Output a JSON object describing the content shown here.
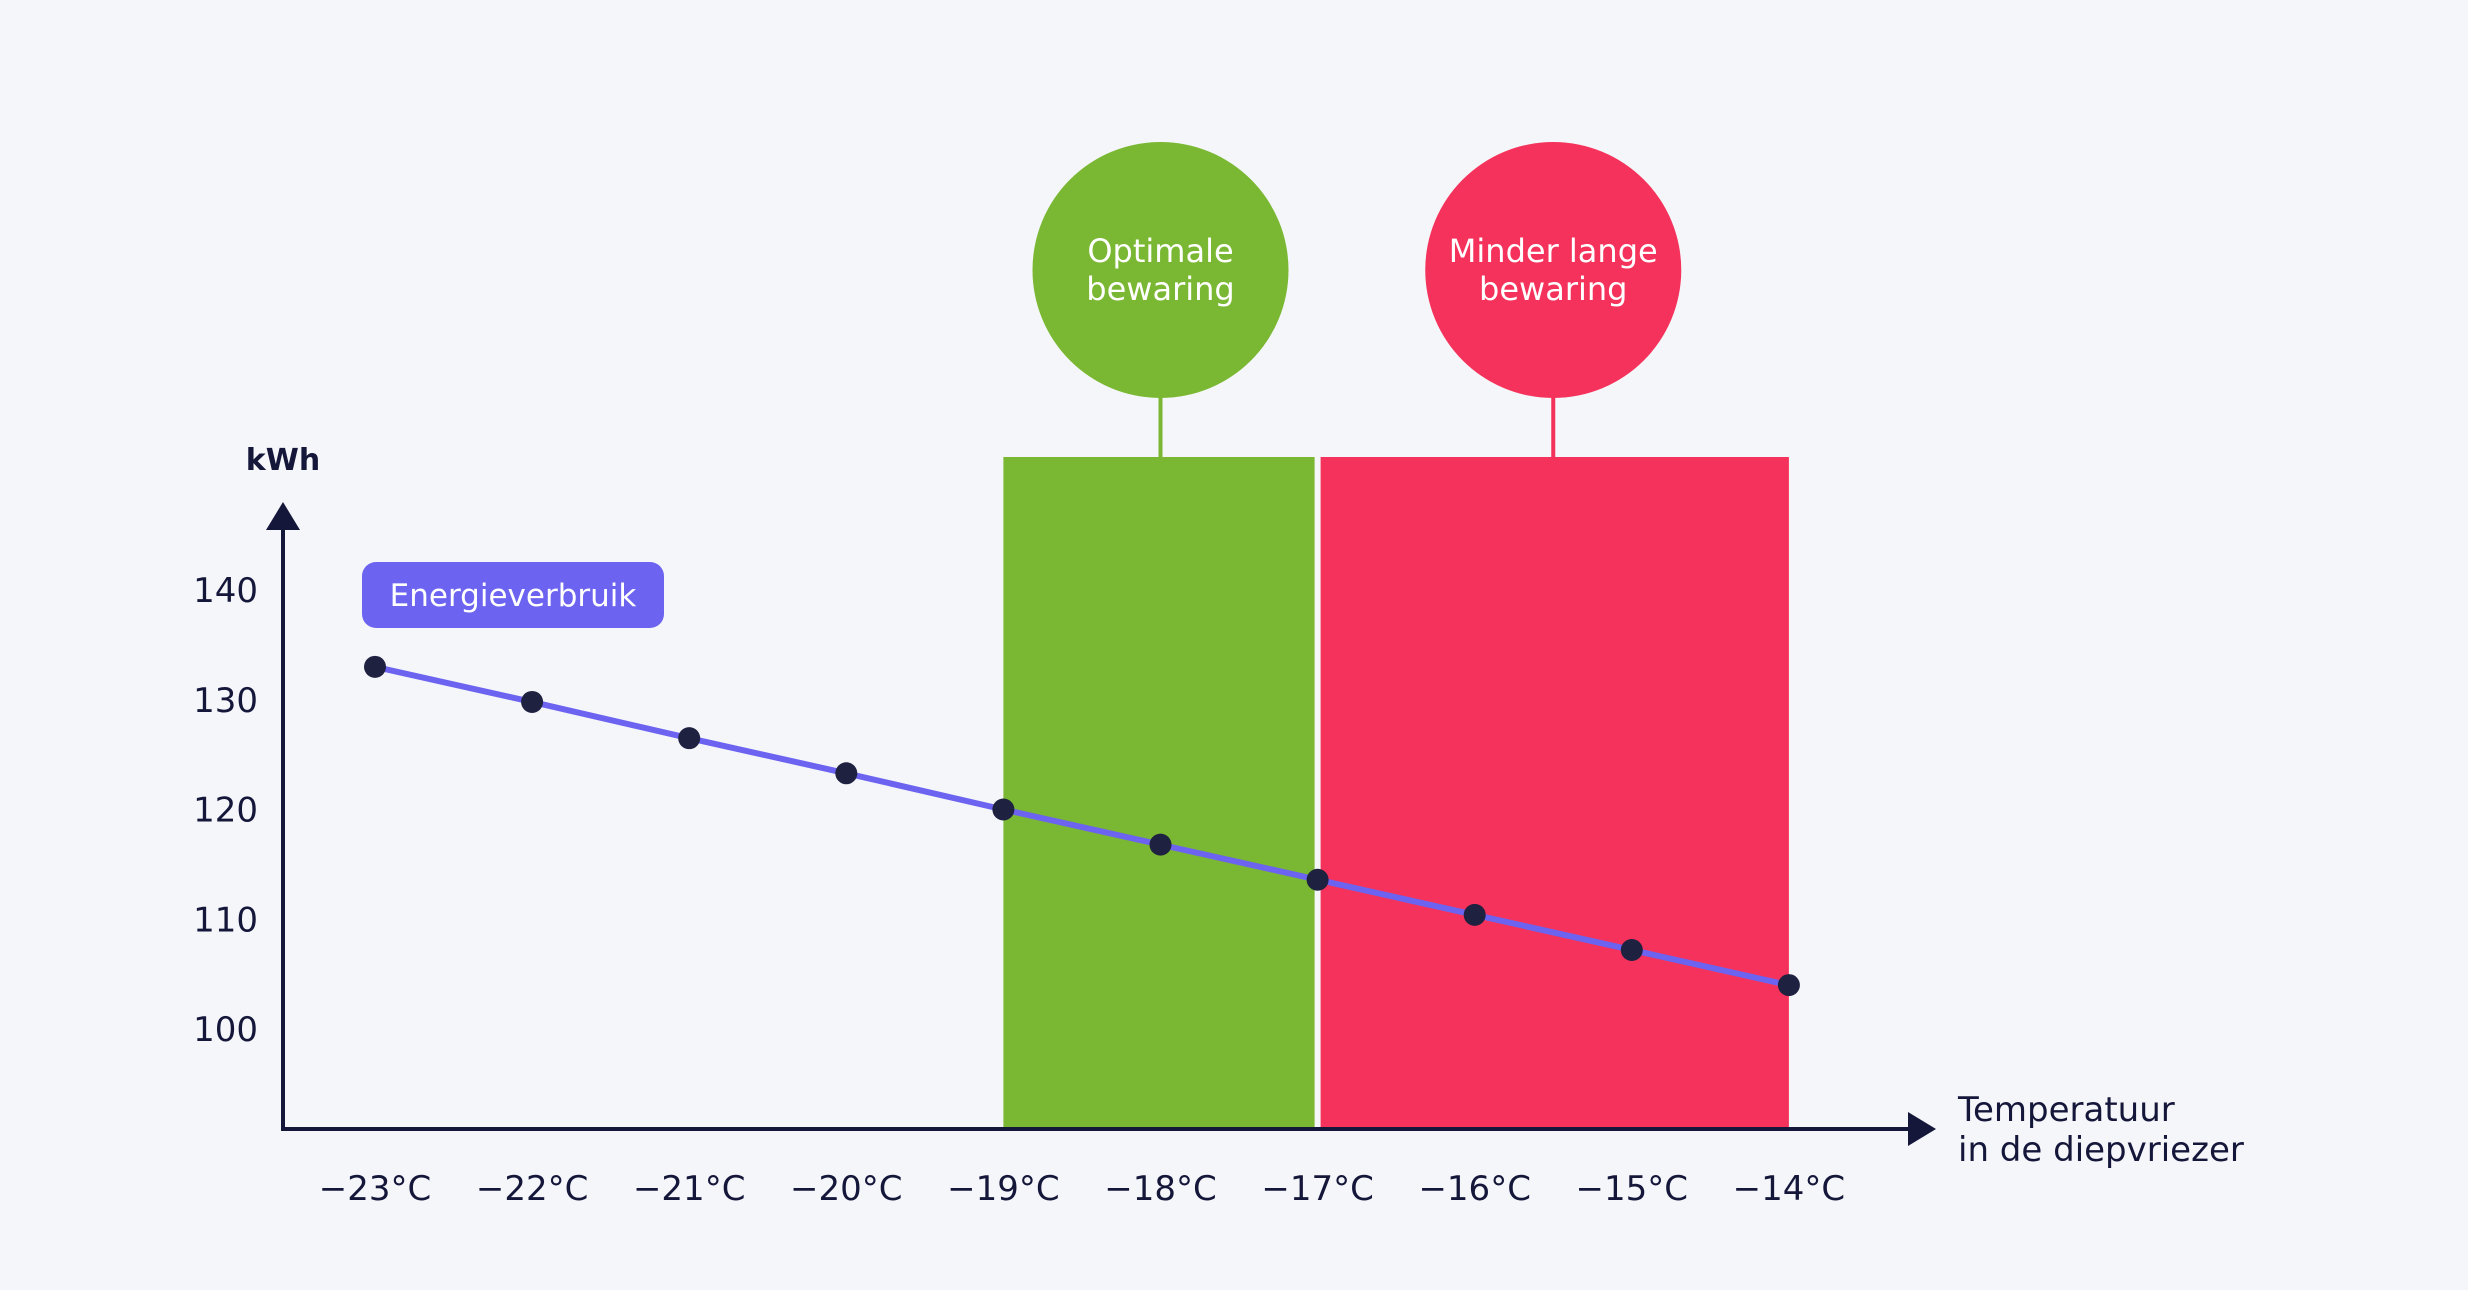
{
  "chart_data": {
    "type": "line",
    "xlabel": "Temperatuur in de diepvriezer",
    "xlabel_lines": [
      "Temperatuur",
      "in de diepvriezer"
    ],
    "ylabel": "kWh",
    "categories": [
      "−23°C",
      "−22°C",
      "−21°C",
      "−20°C",
      "−19°C",
      "−18°C",
      "−17°C",
      "−16°C",
      "−15°C",
      "−14°C"
    ],
    "x": [
      -23,
      -22,
      -21,
      -20,
      -19,
      -18,
      -17,
      -16,
      -15,
      -14
    ],
    "yticks": [
      100,
      110,
      120,
      130,
      140
    ],
    "ylim": [
      90.5,
      142
    ],
    "series": [
      {
        "name": "Energieverbruik",
        "values": [
          133,
          129.8,
          126.5,
          123.3,
          120,
          116.8,
          113.6,
          110.4,
          107.2,
          104
        ],
        "color": "#6c63f0"
      }
    ],
    "zones": [
      {
        "label": "Optimale bewaring",
        "label_lines": [
          "Optimale",
          "bewaring"
        ],
        "x_range": [
          -19,
          -17
        ],
        "color": "#7ab833"
      },
      {
        "label": "Minder lange bewaring",
        "label_lines": [
          "Minder lange",
          "bewaring"
        ],
        "x_range": [
          -17,
          -14
        ],
        "color": "#f5325b"
      }
    ],
    "grid": false,
    "legend": "top-left",
    "colors": {
      "background": "#f5f6f9",
      "axis": "#14163a",
      "marker": "#1f2140",
      "text": "#14163a",
      "badge_text": "#ffffff"
    }
  }
}
